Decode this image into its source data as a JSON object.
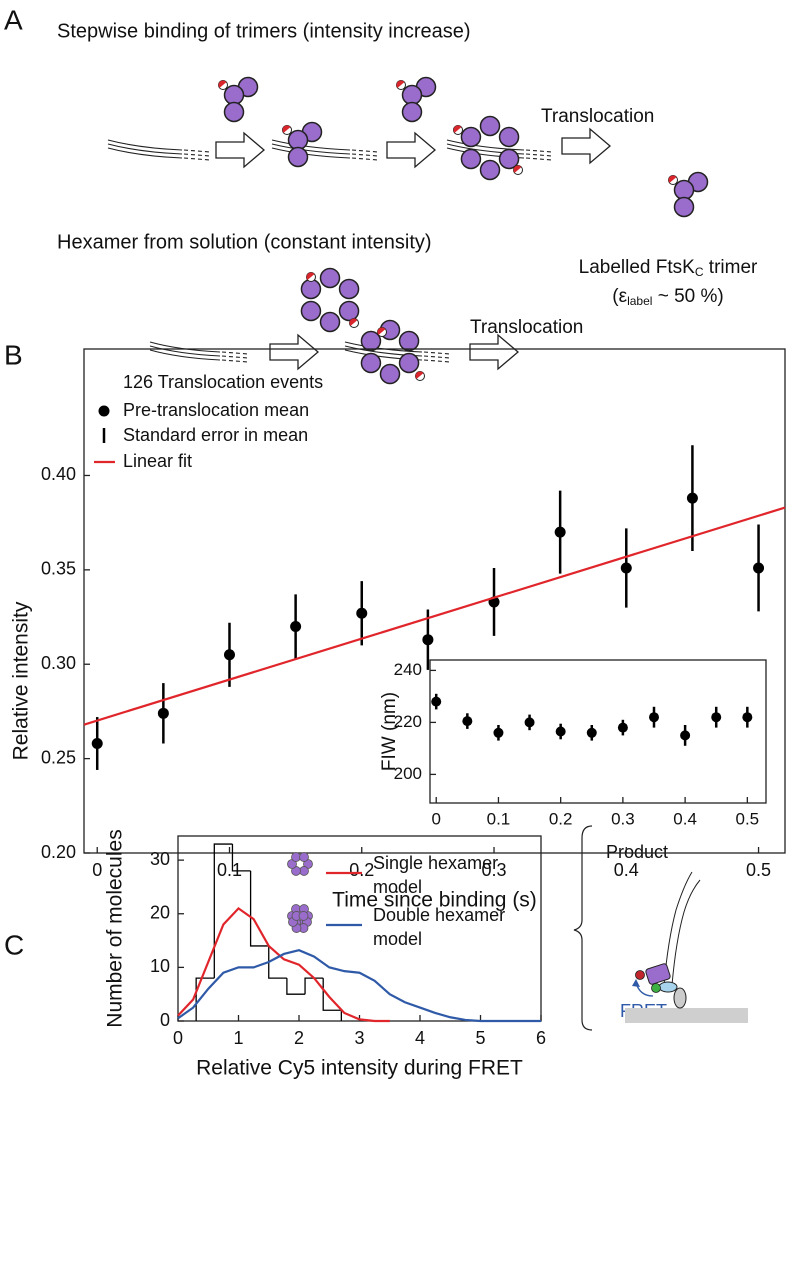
{
  "panels": {
    "a": "A",
    "b": "B",
    "c": "C"
  },
  "diagram": {
    "stepwise_title": "Stepwise binding of trimers (intensity increase)",
    "translocation_1": "Translocation",
    "hexamer_title": "Hexamer from solution (constant intensity)",
    "translocation_2": "Translocation",
    "trimer_label": [
      "Labelled FtsK",
      "C",
      " trimer"
    ],
    "efficiency_label": [
      "(ε",
      "label",
      " ~ 50 %)"
    ]
  },
  "chart_data": [
    {
      "type": "scatter",
      "xlabel": "Time since binding (s)",
      "ylabel": "Relative intensity",
      "legend_title": "126 Translocation events",
      "error_label": "Standard error in mean",
      "legend": "upper left",
      "xlim": [
        -0.01,
        0.52
      ],
      "ylim": [
        0.2,
        0.467
      ],
      "xticks": [
        0,
        0.1,
        0.2,
        0.3,
        0.4,
        0.5
      ],
      "yticks": [
        {
          "value": 0.2,
          "label": "0.20"
        },
        0.25,
        {
          "value": 0.3,
          "label": "0.30"
        },
        0.35,
        {
          "value": 0.4,
          "label": "0.40"
        }
      ],
      "grid": false,
      "series": [
        {
          "name": "Pre-translocation mean",
          "color": "#000000",
          "x": [
            0,
            0.05,
            0.1,
            0.15,
            0.2,
            0.25,
            0.3,
            0.35,
            0.4,
            0.45,
            0.5
          ],
          "values": [
            0.258,
            0.274,
            0.305,
            0.32,
            0.327,
            0.313,
            0.333,
            0.37,
            0.351,
            0.388,
            0.351
          ],
          "errors": [
            0.014,
            0.016,
            0.017,
            0.017,
            0.017,
            0.016,
            0.018,
            0.022,
            0.021,
            0.028,
            0.023
          ]
        },
        {
          "name": "Linear fit",
          "color": "#e0252b",
          "style": "line",
          "x": [
            -0.01,
            0.52
          ],
          "values": [
            0.268,
            0.383
          ]
        }
      ]
    },
    {
      "type": "scatter",
      "ylabel": "FIW (nm)",
      "xlim": [
        -0.01,
        0.53
      ],
      "ylim": [
        189,
        244
      ],
      "xticks": [
        0,
        0.1,
        0.2,
        0.3,
        0.4,
        0.5
      ],
      "yticks": [
        200,
        220,
        240
      ],
      "grid": false,
      "series": [
        {
          "color": "#000000",
          "x": [
            0,
            0.05,
            0.1,
            0.15,
            0.2,
            0.25,
            0.3,
            0.35,
            0.4,
            0.45,
            0.5
          ],
          "values": [
            228,
            220.5,
            216,
            220,
            216.5,
            216,
            218,
            222,
            215,
            222,
            222
          ],
          "errors": [
            3,
            3,
            3,
            3,
            3,
            3,
            3,
            4,
            4,
            4,
            4
          ]
        }
      ]
    },
    {
      "type": "histogram",
      "xlabel": "Relative Cy5 intensity during FRET",
      "ylabel": "Number of molecules",
      "xlim": [
        0,
        6
      ],
      "ylim": [
        0,
        34.5
      ],
      "xticks": [
        0,
        1,
        2,
        3,
        4,
        5,
        6
      ],
      "yticks": [
        0,
        10,
        20,
        30
      ],
      "grid": false,
      "color": "#000000",
      "bins": [
        0.3,
        0.6,
        0.9,
        1.2,
        1.5,
        1.8,
        2.1,
        2.4,
        2.7
      ],
      "values": [
        8,
        33,
        28,
        14,
        8,
        5,
        8,
        2
      ],
      "series": [
        {
          "name": "Single hexamer model",
          "color": "#e0252b",
          "x": [
            0,
            0.25,
            0.5,
            0.75,
            1,
            1.25,
            1.5,
            1.75,
            2,
            2.25,
            2.5,
            2.75,
            3,
            3.25,
            3.5
          ],
          "values": [
            1,
            4,
            11,
            18,
            21,
            19,
            14,
            11.5,
            10.5,
            8,
            4.5,
            1.5,
            0.3,
            0,
            0
          ]
        },
        {
          "name": "Double hexamer model",
          "color": "#2f5aa8",
          "x": [
            0,
            0.25,
            0.5,
            0.75,
            1,
            1.25,
            1.5,
            1.75,
            2,
            2.25,
            2.5,
            2.75,
            3,
            3.25,
            3.5,
            3.75,
            4,
            4.25,
            4.5,
            4.75,
            5,
            5.5,
            6
          ],
          "values": [
            0.5,
            2.5,
            6,
            9,
            10,
            10,
            11,
            12.5,
            13.2,
            12,
            10,
            9.3,
            9,
            7.5,
            5,
            3.5,
            2.5,
            1.5,
            0.7,
            0.2,
            0,
            0,
            0
          ]
        }
      ]
    }
  ],
  "schematic": {
    "product": "Product",
    "fret": "FRET"
  }
}
